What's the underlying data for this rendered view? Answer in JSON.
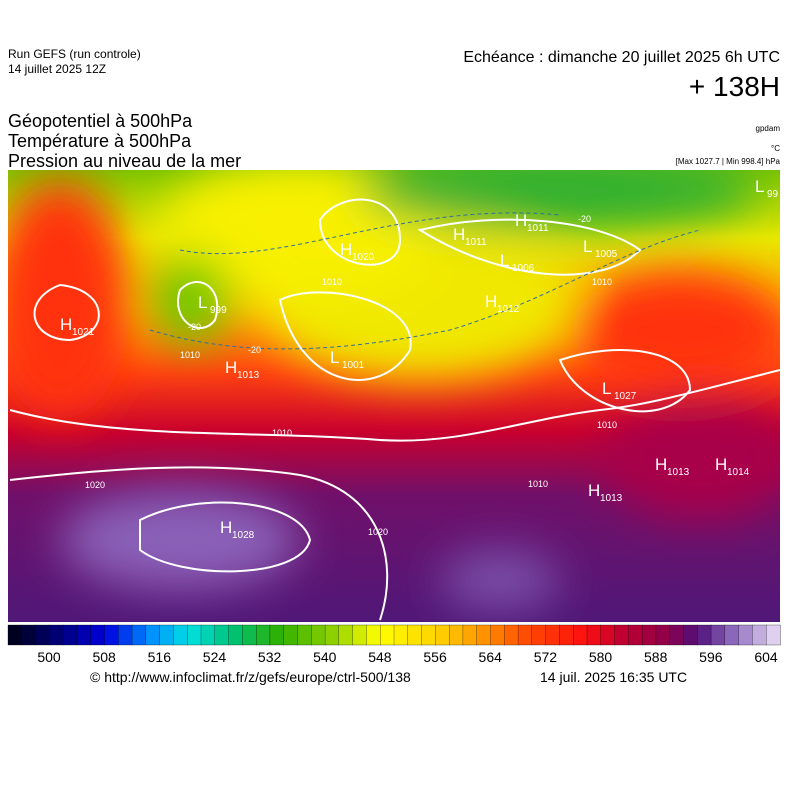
{
  "header": {
    "run": "Run GEFS (run controle)",
    "run_date": "14 juillet 2025 12Z",
    "forecast": "Echéance : dimanche 20 juillet 2025 6h UTC",
    "lead": "+ 138H"
  },
  "titles": [
    "Géopotentiel à 500hPa",
    "Température à 500hPa",
    "Pression au niveau de la mer"
  ],
  "units": {
    "geopotential": "gpdam",
    "temperature": "°C",
    "pressure": "[Max 1027.7 | Min 998.4] hPa"
  },
  "pressure_centers": [
    {
      "type": "H",
      "value": "1021"
    },
    {
      "type": "L",
      "value": "999"
    },
    {
      "type": "H",
      "value": "1013"
    },
    {
      "type": "L",
      "value": "1001"
    },
    {
      "type": "H",
      "value": "1020"
    },
    {
      "type": "H",
      "value": "1011"
    },
    {
      "type": "H",
      "value": "1011"
    },
    {
      "type": "L",
      "value": "1006"
    },
    {
      "type": "L",
      "value": "1005"
    },
    {
      "type": "H",
      "value": "1012"
    },
    {
      "type": "L",
      "value": "1027"
    },
    {
      "type": "H",
      "value": "1013"
    },
    {
      "type": "H",
      "value": "1014"
    },
    {
      "type": "H",
      "value": "1013"
    },
    {
      "type": "H",
      "value": "1028"
    },
    {
      "type": "L",
      "value": "99"
    }
  ],
  "isobar_labels": [
    "1010",
    "1020",
    "1010",
    "1010",
    "1010",
    "1020",
    "1010",
    "1010",
    "-20",
    "-20",
    "-20"
  ],
  "colorbar": {
    "ticks": [
      500,
      508,
      516,
      524,
      532,
      540,
      548,
      556,
      564,
      572,
      580,
      588,
      596,
      604
    ]
  },
  "footer": {
    "source": "© http://www.infoclimat.fr/z/gefs/europe/ctrl-500/138",
    "timestamp": "14 juil. 2025 16:35 UTC"
  }
}
